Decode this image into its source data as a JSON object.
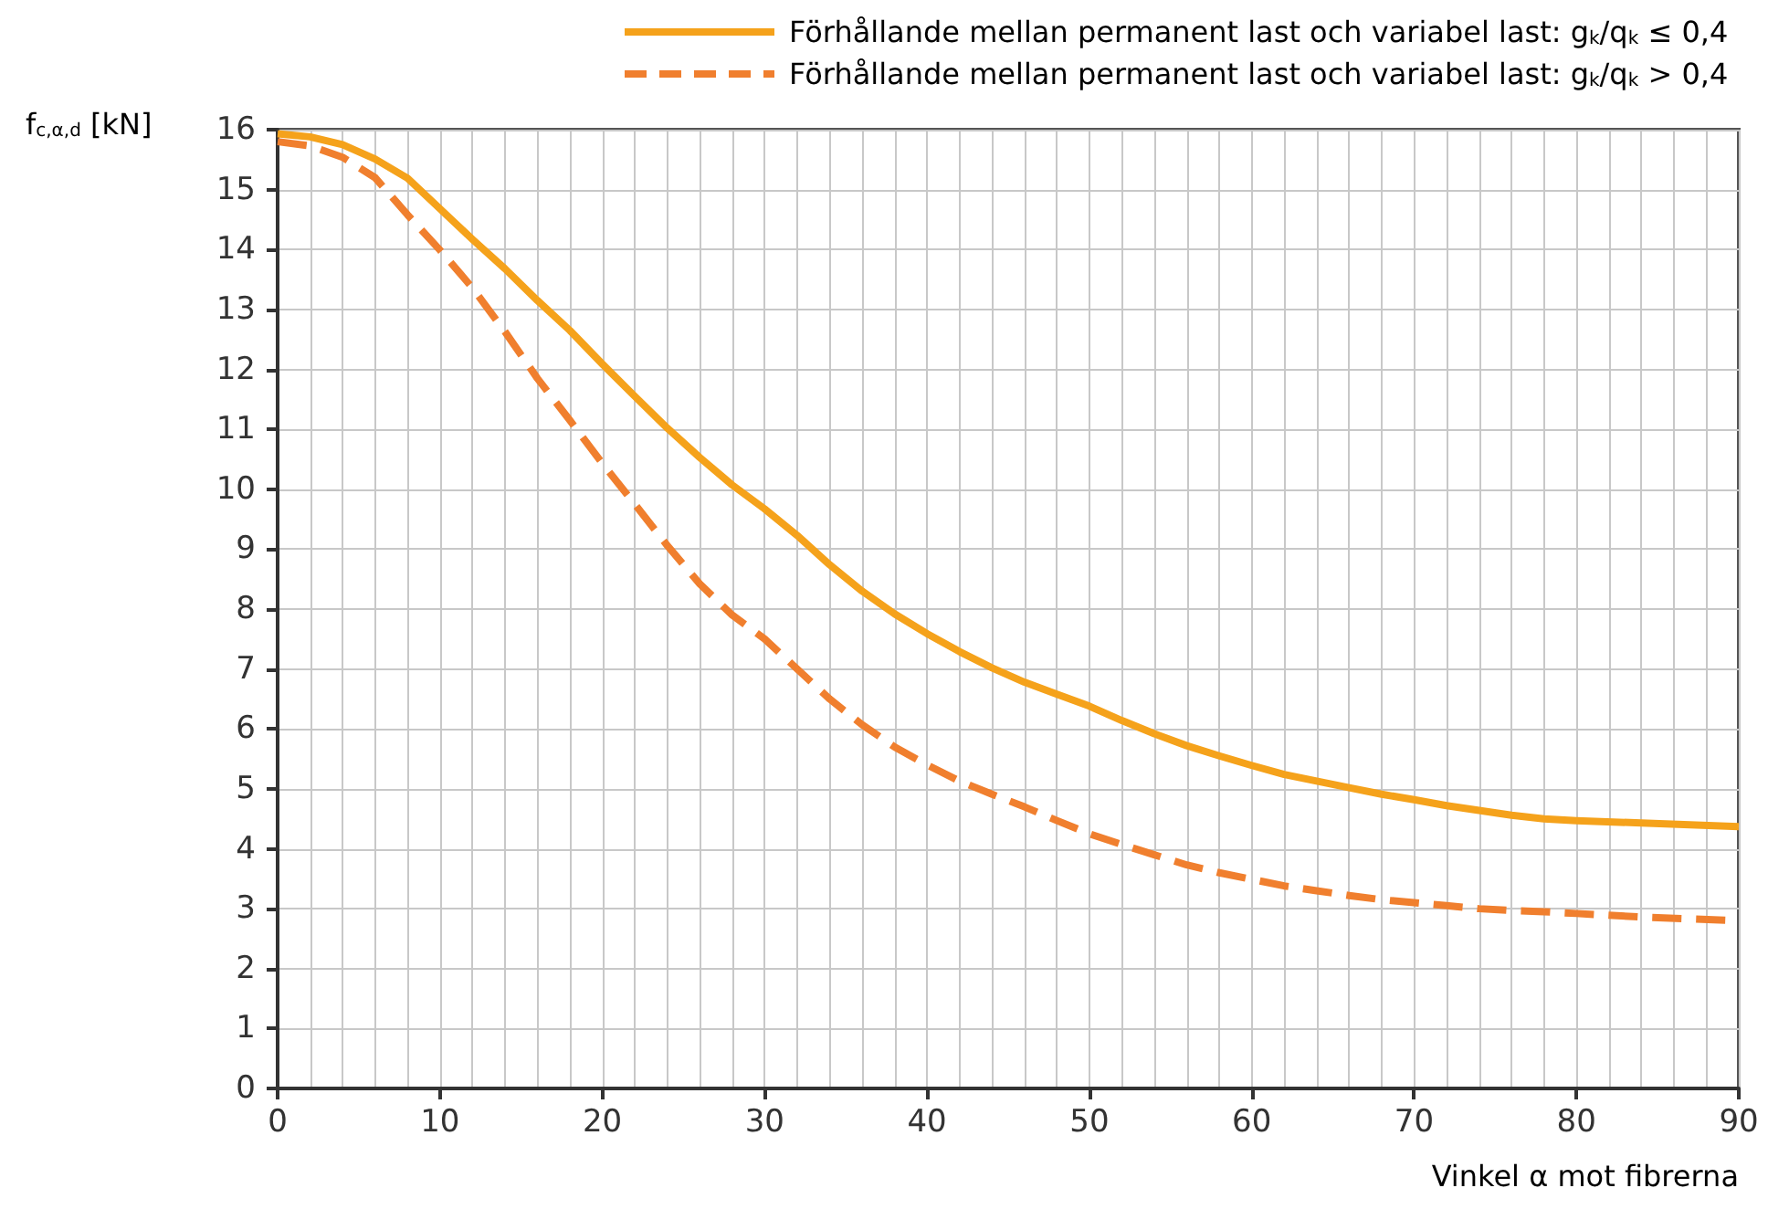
{
  "chart_data": {
    "type": "line",
    "xlabel": "Vinkel α mot fibrerna",
    "ylabel": "f$_{c,α,d}$ [kN]",
    "x": [
      0,
      2,
      4,
      6,
      8,
      10,
      12,
      14,
      16,
      18,
      20,
      22,
      24,
      26,
      28,
      30,
      32,
      34,
      36,
      38,
      40,
      42,
      44,
      46,
      48,
      50,
      52,
      54,
      56,
      58,
      60,
      62,
      64,
      66,
      68,
      70,
      72,
      74,
      76,
      78,
      80,
      84,
      90
    ],
    "series": [
      {
        "name": "Förhållande mellan permanent last och variabel last: g$_{k}$/q$_{k}$ ≤ 0,4",
        "color": "#f5a21b",
        "line_style": "solid",
        "values": [
          15.93,
          15.88,
          15.75,
          15.51,
          15.19,
          14.68,
          14.17,
          13.68,
          13.15,
          12.65,
          12.09,
          11.55,
          11.02,
          10.53,
          10.07,
          9.67,
          9.23,
          8.74,
          8.3,
          7.92,
          7.59,
          7.29,
          7.02,
          6.78,
          6.58,
          6.38,
          6.14,
          5.92,
          5.72,
          5.55,
          5.39,
          5.24,
          5.13,
          5.02,
          4.91,
          4.82,
          4.72,
          4.64,
          4.56,
          4.5,
          4.47,
          4.43,
          4.37
        ]
      },
      {
        "name": "Förhållande mellan permanent last och variabel last: g$_{k}$/q$_{k}$ > 0,4",
        "color": "#f07f2e",
        "line_style": "dashed",
        "values": [
          15.8,
          15.73,
          15.54,
          15.2,
          14.58,
          13.99,
          13.36,
          12.63,
          11.85,
          11.15,
          10.43,
          9.75,
          9.06,
          8.42,
          7.9,
          7.5,
          7.0,
          6.5,
          6.07,
          5.7,
          5.4,
          5.13,
          4.91,
          4.7,
          4.47,
          4.25,
          4.07,
          3.9,
          3.73,
          3.6,
          3.49,
          3.38,
          3.3,
          3.22,
          3.15,
          3.1,
          3.05,
          3.0,
          2.97,
          2.95,
          2.92,
          2.86,
          2.8
        ]
      }
    ],
    "xlim": [
      0,
      90
    ],
    "xticks": [
      0,
      10,
      20,
      30,
      40,
      50,
      60,
      70,
      80,
      90
    ],
    "ylim": [
      0,
      16
    ],
    "yticks": [
      0,
      1,
      2,
      3,
      4,
      5,
      6,
      7,
      8,
      9,
      10,
      11,
      12,
      13,
      14,
      15,
      16
    ],
    "grid": true,
    "legend": "top right",
    "marker": "none"
  }
}
